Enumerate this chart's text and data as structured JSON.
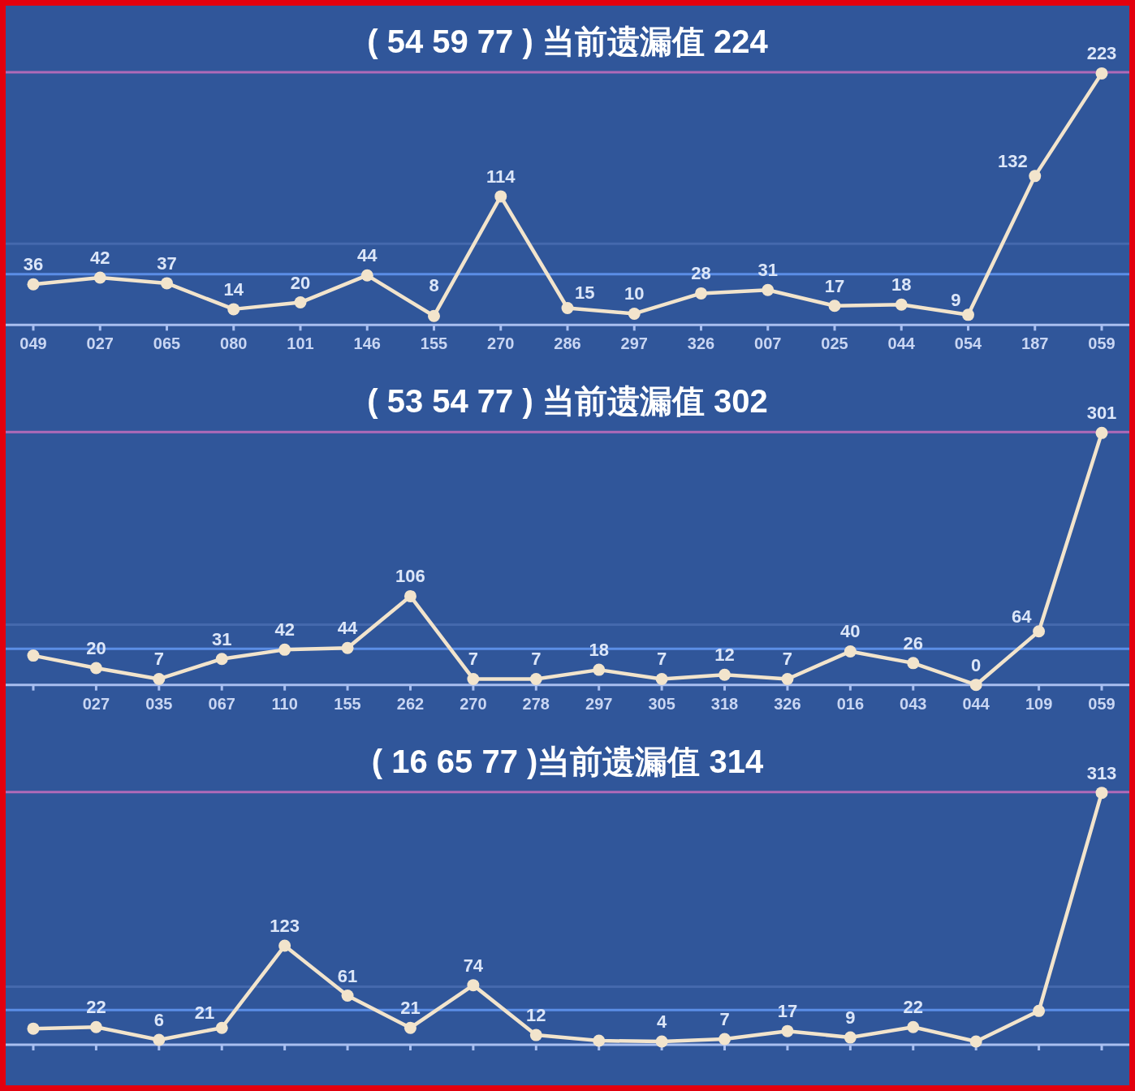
{
  "chart_data": [
    {
      "type": "line",
      "title": "( 54 59 77 ) 当前遗漏值 224",
      "categories": [
        "049",
        "027",
        "065",
        "080",
        "101",
        "146",
        "155",
        "270",
        "286",
        "297",
        "326",
        "007",
        "025",
        "044",
        "054",
        "187",
        "059"
      ],
      "values": [
        36,
        42,
        37,
        14,
        20,
        44,
        8,
        114,
        15,
        10,
        28,
        31,
        17,
        18,
        9,
        132,
        223
      ],
      "color": "#f2e4cc",
      "marker": "circle",
      "data_labels": true,
      "tick_labels": "x",
      "ref_lines": [
        {
          "axis": "y",
          "value": 224,
          "color": "#b06ab8"
        },
        {
          "axis": "y",
          "value": 72,
          "color": "#4569ad"
        },
        {
          "axis": "y",
          "value": 45,
          "color": "#5b8ee6"
        }
      ]
    },
    {
      "type": "line",
      "title": "( 53 54 77 ) 当前遗漏值 302",
      "categories": [
        null,
        "027",
        "035",
        "067",
        "110",
        "155",
        "262",
        "270",
        "278",
        "297",
        "305",
        "318",
        "326",
        "016",
        "043",
        "044",
        "109",
        "059"
      ],
      "values": [
        35,
        20,
        7,
        31,
        42,
        44,
        106,
        7,
        7,
        18,
        7,
        12,
        7,
        40,
        26,
        0,
        64,
        301
      ],
      "color": "#f2e4cc",
      "marker": "circle",
      "value_labels": [
        null,
        "20",
        "7",
        "31",
        "42",
        "44",
        "106",
        "7",
        "7",
        "18",
        "7",
        "12",
        "7",
        "40",
        "26",
        "0",
        "64",
        "301"
      ],
      "tick_labels": "x",
      "ref_lines": [
        {
          "axis": "y",
          "value": 302,
          "color": "#b06ab8"
        },
        {
          "axis": "y",
          "value": 72,
          "color": "#4569ad"
        },
        {
          "axis": "y",
          "value": 43,
          "color": "#5b8ee6"
        }
      ]
    },
    {
      "type": "line",
      "title": "( 16 65 77 )当前遗漏值 314",
      "categories": [
        null,
        null,
        null,
        null,
        null,
        null,
        null,
        null,
        null,
        null,
        null,
        null,
        null,
        null,
        null,
        null,
        null,
        null
      ],
      "values": [
        20,
        22,
        6,
        21,
        123,
        61,
        21,
        74,
        12,
        5,
        4,
        7,
        17,
        9,
        22,
        4,
        42,
        313
      ],
      "color": "#f2e4cc",
      "marker": "circle",
      "value_labels": [
        null,
        "22",
        "6",
        "21",
        "123",
        "61",
        "21",
        "74",
        "12",
        null,
        "4",
        "7",
        "17",
        "9",
        "22",
        null,
        null,
        "313"
      ],
      "tick_labels": false,
      "ref_lines": [
        {
          "axis": "y",
          "value": 314,
          "color": "#b06ab8"
        },
        {
          "axis": "y",
          "value": 72,
          "color": "#4569ad"
        },
        {
          "axis": "y",
          "value": 43,
          "color": "#5b8ee6"
        }
      ]
    }
  ]
}
